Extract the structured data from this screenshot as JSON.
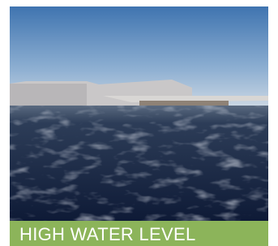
{
  "caption": "HIGH WATER LEVEL"
}
